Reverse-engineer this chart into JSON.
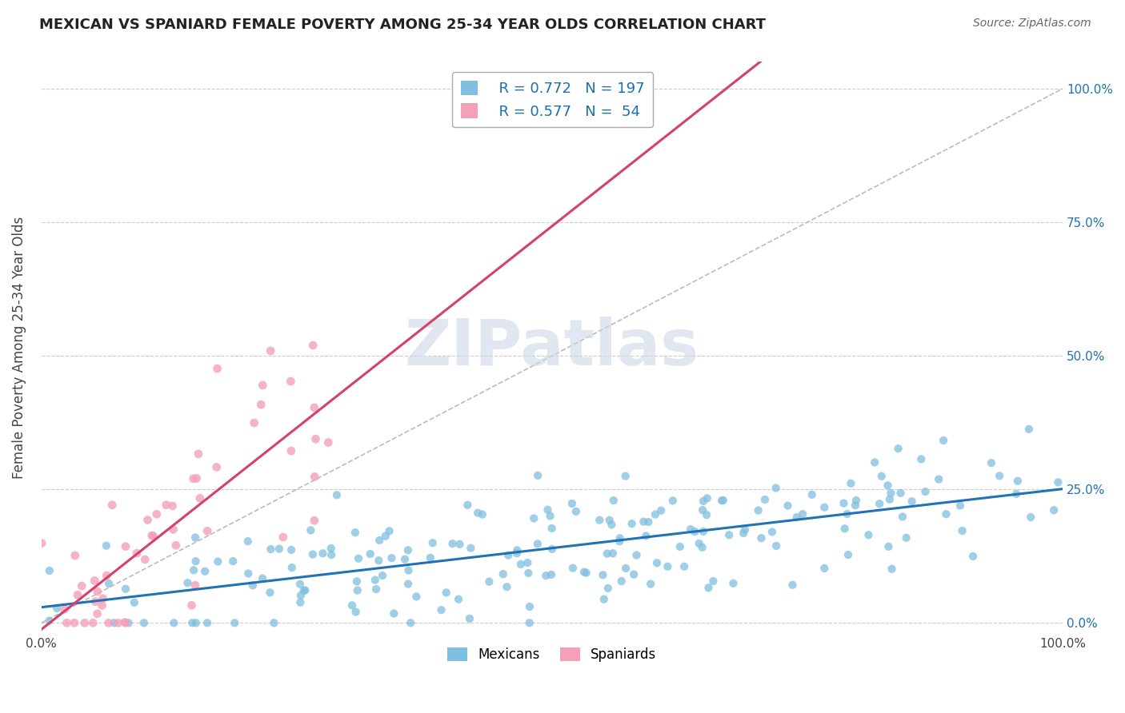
{
  "title": "MEXICAN VS SPANIARD FEMALE POVERTY AMONG 25-34 YEAR OLDS CORRELATION CHART",
  "source": "Source: ZipAtlas.com",
  "ylabel": "Female Poverty Among 25-34 Year Olds",
  "xlim": [
    0,
    1
  ],
  "ylim": [
    -0.02,
    1.05
  ],
  "ytick_positions": [
    0.0,
    0.25,
    0.5,
    0.75,
    1.0
  ],
  "ytick_labels_right": [
    "0.0%",
    "25.0%",
    "50.0%",
    "75.0%",
    "100.0%"
  ],
  "xtick_positions": [
    0.0,
    1.0
  ],
  "xtick_labels": [
    "0.0%",
    "100.0%"
  ],
  "mexican_color": "#7fbfdf",
  "spaniard_color": "#f4a0b8",
  "mexican_line_color": "#2171b5",
  "spaniard_line_color": "#d44070",
  "ref_line_color": "#bbbbbb",
  "watermark_color": "#ccd8e8",
  "watermark_alpha": 0.6,
  "R_mexican": 0.772,
  "N_mexican": 197,
  "R_spaniard": 0.577,
  "N_spaniard": 54,
  "background_color": "#ffffff",
  "grid_color": "#cccccc",
  "title_color": "#222222",
  "right_axis_color": "#2171b5",
  "legend_text_color": "#1a6faf"
}
